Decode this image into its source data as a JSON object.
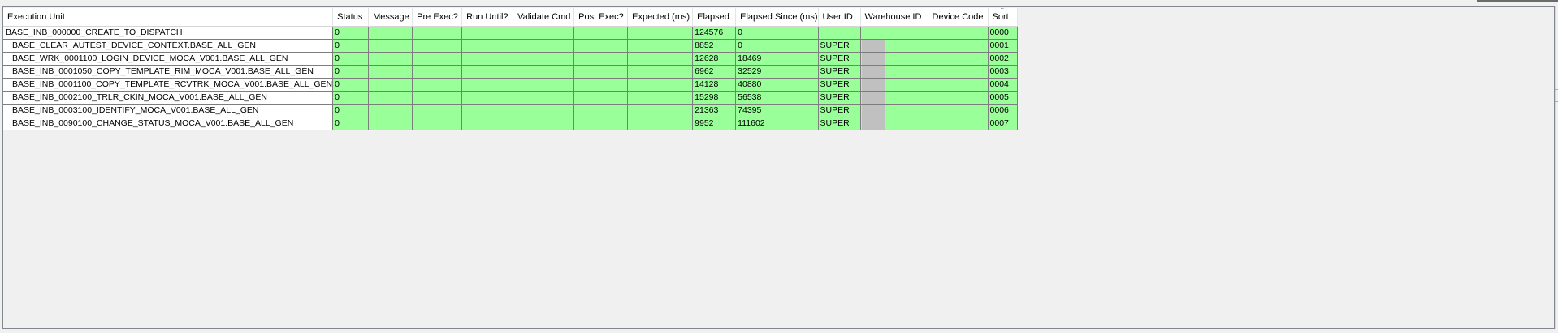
{
  "columns": [
    "Execution Unit",
    "Status",
    "Message",
    "Pre Exec?",
    "Run Until?",
    "Validate Cmd",
    "Post Exec?",
    "Expected (ms)",
    "Elapsed",
    "Elapsed Since (ms)",
    "User ID",
    "Warehouse ID",
    "Device Code",
    "Sort"
  ],
  "sort_indicator": "^",
  "rows": [
    {
      "unit": "BASE_INB_000000_CREATE_TO_DISPATCH",
      "status": "0",
      "elapsed": "124576",
      "since": "0",
      "user": "",
      "sort": "0000"
    },
    {
      "unit": "BASE_CLEAR_AUTEST_DEVICE_CONTEXT.BASE_ALL_GEN",
      "status": "0",
      "elapsed": "8852",
      "since": "0",
      "user": "SUPER",
      "sort": "0001"
    },
    {
      "unit": "BASE_WRK_0001100_LOGIN_DEVICE_MOCA_V001.BASE_ALL_GEN",
      "status": "0",
      "elapsed": "12628",
      "since": "18469",
      "user": "SUPER",
      "sort": "0002"
    },
    {
      "unit": "BASE_INB_0001050_COPY_TEMPLATE_RIM_MOCA_V001.BASE_ALL_GEN",
      "status": "0",
      "elapsed": "6962",
      "since": "32529",
      "user": "SUPER",
      "sort": "0003"
    },
    {
      "unit": "BASE_INB_0001100_COPY_TEMPLATE_RCVTRK_MOCA_V001.BASE_ALL_GEN",
      "status": "0",
      "elapsed": "14128",
      "since": "40880",
      "user": "SUPER",
      "sort": "0004"
    },
    {
      "unit": "BASE_INB_0002100_TRLR_CKIN_MOCA_V001.BASE_ALL_GEN",
      "status": "0",
      "elapsed": "15298",
      "since": "56538",
      "user": "SUPER",
      "sort": "0005"
    },
    {
      "unit": "BASE_INB_0003100_IDENTIFY_MOCA_V001.BASE_ALL_GEN",
      "status": "0",
      "elapsed": "21363",
      "since": "74395",
      "user": "SUPER",
      "sort": "0006"
    },
    {
      "unit": "BASE_INB_0090100_CHANGE_STATUS_MOCA_V001.BASE_ALL_GEN",
      "status": "0",
      "elapsed": "9952",
      "since": "111602",
      "user": "SUPER",
      "sort": "0007"
    }
  ],
  "colors": {
    "row_fill": "#99ff99",
    "mask": "#c0c0c0"
  }
}
